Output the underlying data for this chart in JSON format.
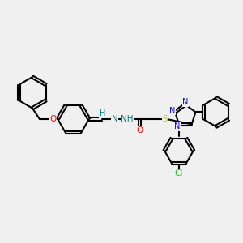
{
  "background_color": "#f0f0f0",
  "bond_color": "#000000",
  "atom_colors": {
    "O": "#ff0000",
    "N": "#0000ff",
    "S": "#cccc00",
    "Cl": "#00cc00",
    "H": "#008080",
    "C": "#000000"
  },
  "title": "",
  "figsize": [
    3.0,
    3.0
  ],
  "dpi": 100
}
